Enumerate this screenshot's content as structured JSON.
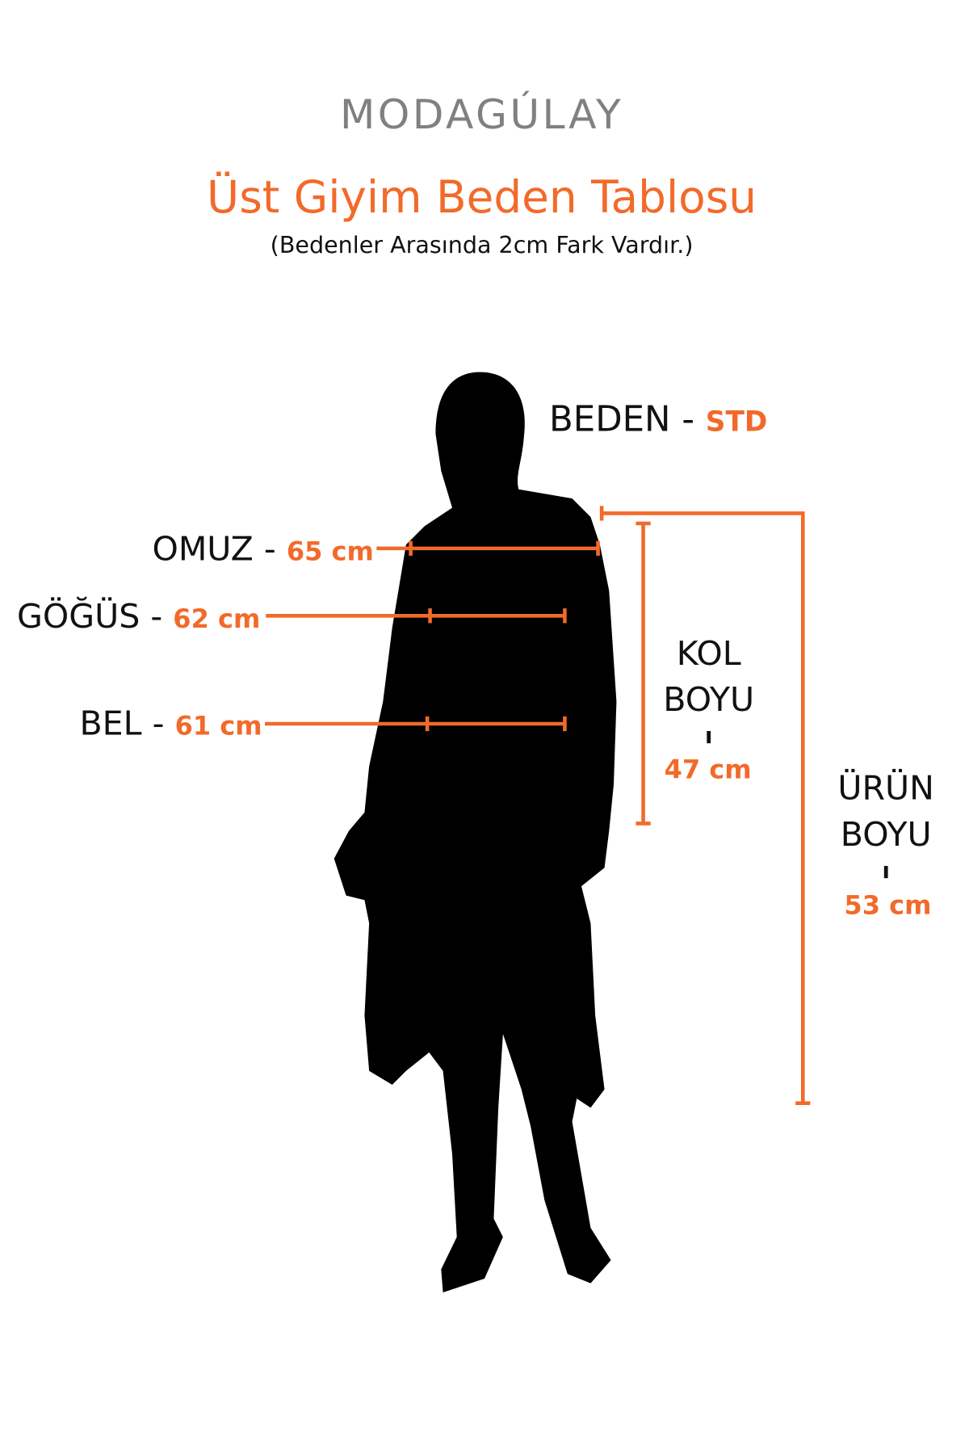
{
  "brand": {
    "logo": "MODAGÚLAY",
    "color": "#808080"
  },
  "header": {
    "title": "Üst Giyim Beden Tablosu",
    "subtitle": "(Bedenler Arasında 2cm Fark Vardır.)"
  },
  "accent_color": "#f26a2a",
  "size": {
    "label": "BEDEN -",
    "value": "STD"
  },
  "measurements": {
    "omuz": {
      "label": "OMUZ -",
      "value": "65 cm"
    },
    "gogus": {
      "label": "GÖĞÜS -",
      "value": "62 cm"
    },
    "bel": {
      "label": "BEL -",
      "value": "61 cm"
    },
    "kol_boyu": {
      "line1": "KOL",
      "line2": "BOYU",
      "sep": "ı",
      "value": "47 cm"
    },
    "urun_boyu": {
      "line1": "ÜRÜN",
      "line2": "BOYU",
      "sep": "ı",
      "value": "53 cm"
    }
  },
  "figure": {
    "icon": "woman-silhouette-icon"
  }
}
